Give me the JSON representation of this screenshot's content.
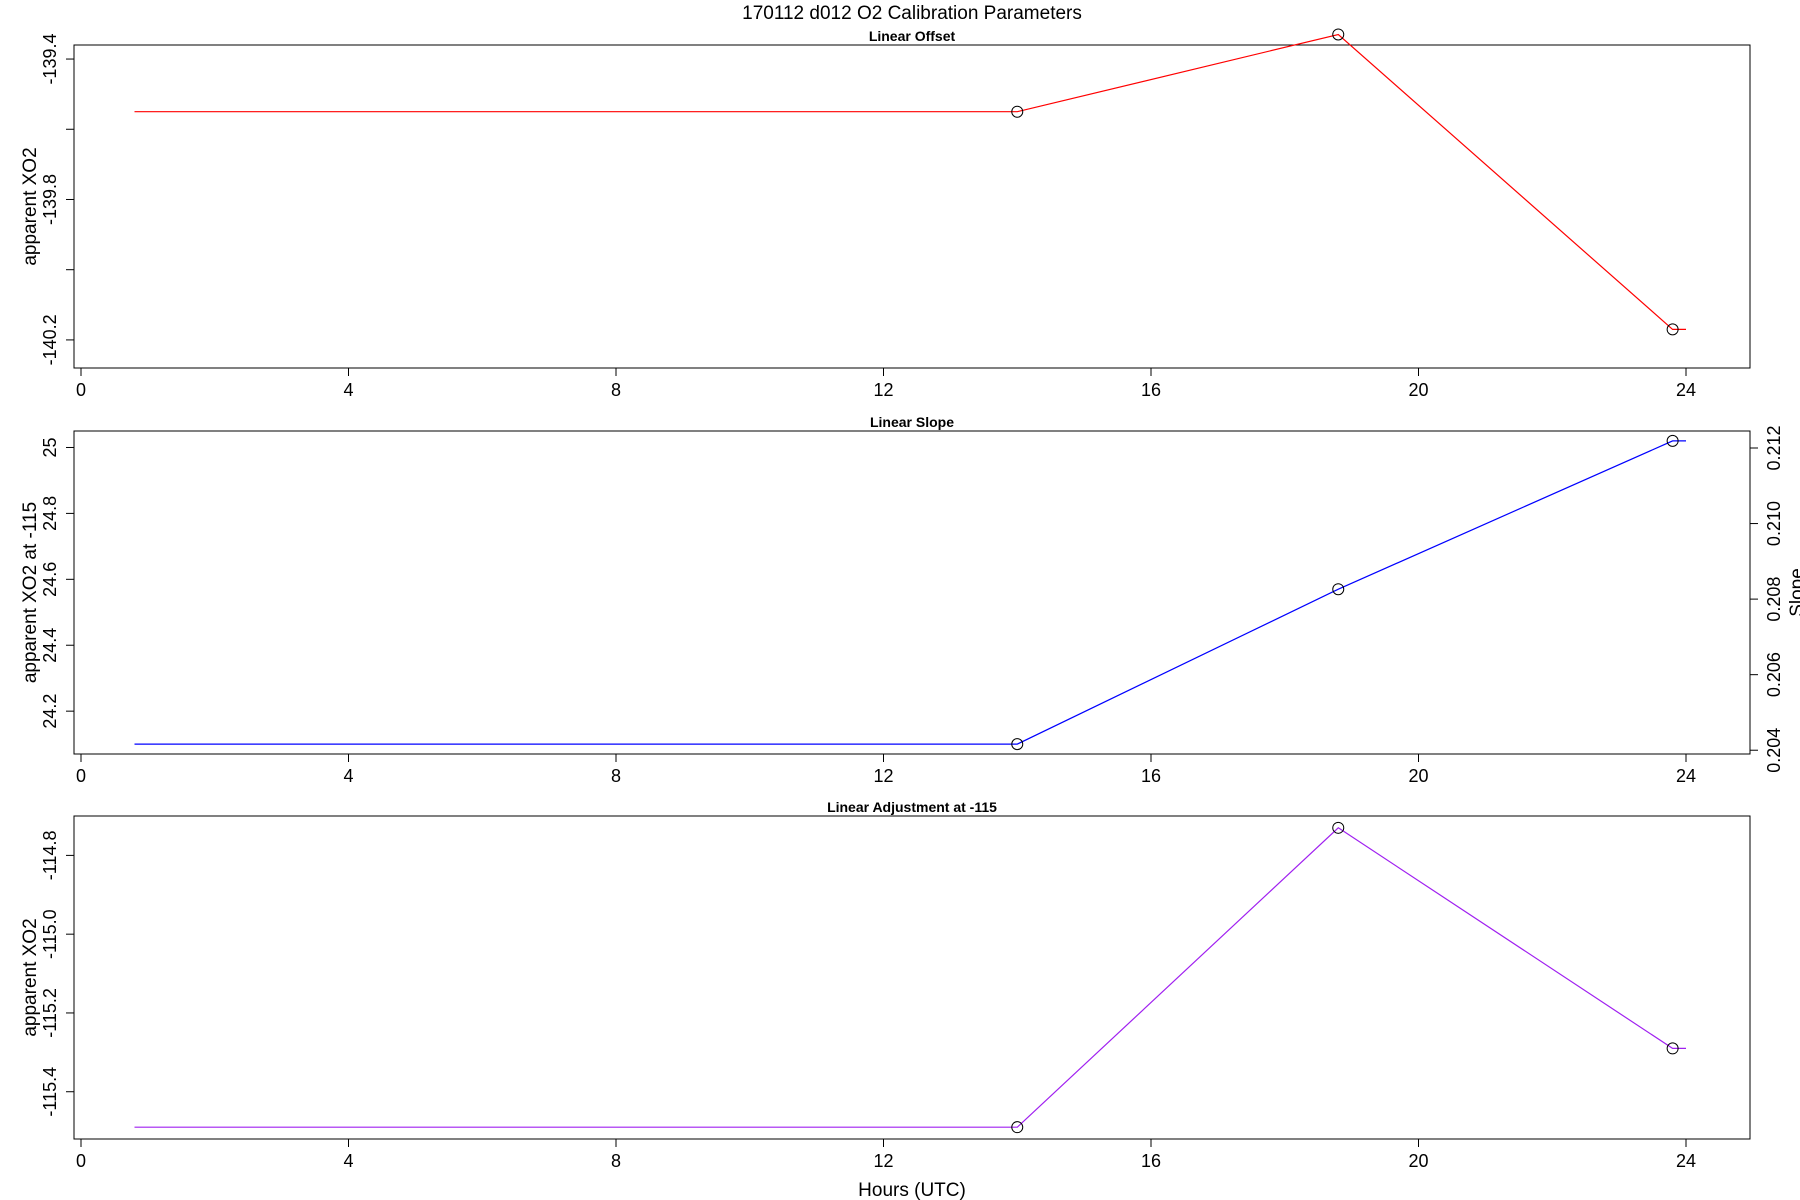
{
  "title": "170112   d012   O2 Calibration Parameters",
  "xlabel": "Hours (UTC)",
  "chart_data": [
    {
      "type": "line",
      "title": "Linear Offset",
      "ylabel": "apparent XO2",
      "xlim": [
        0,
        24
      ],
      "xticks": [
        0,
        4,
        8,
        12,
        16,
        20,
        24
      ],
      "ylim": [
        -140.28,
        -139.36
      ],
      "yticks": [
        -139.4,
        -139.8,
        -140.2
      ],
      "yminor": [
        -139.6,
        -140.0
      ],
      "color": "#ff0000",
      "grid": false,
      "x": [
        0.8,
        14.0,
        18.8,
        23.8,
        24.0
      ],
      "y": [
        -139.55,
        -139.55,
        -139.33,
        -140.17,
        -140.17
      ],
      "markers_x": [
        14.0,
        18.8,
        23.8
      ],
      "markers_y": [
        -139.55,
        -139.33,
        -140.17
      ]
    },
    {
      "type": "line",
      "title": "Linear Slope",
      "ylabel": "apparent XO2 at -115",
      "y2label": "Slope",
      "xlim": [
        0,
        24
      ],
      "xticks": [
        0,
        4,
        8,
        12,
        16,
        20,
        24
      ],
      "ylim": [
        24.07,
        25.05
      ],
      "yticks": [
        24.2,
        24.4,
        24.6,
        24.8,
        25.0
      ],
      "y2lim": [
        0.2039,
        0.21245
      ],
      "y2ticks": [
        0.204,
        0.206,
        0.208,
        0.21,
        0.212
      ],
      "y2tick_labels": [
        "0.204",
        "0.206",
        "0.208",
        "0.210",
        "0.212"
      ],
      "color": "#0000ff",
      "grid": false,
      "x": [
        0.8,
        14.0,
        18.8,
        23.8,
        24.0
      ],
      "y": [
        24.1,
        24.1,
        24.57,
        25.02,
        25.02
      ],
      "markers_x": [
        14.0,
        18.8,
        23.8
      ],
      "markers_y": [
        24.1,
        24.57,
        25.02
      ]
    },
    {
      "type": "line",
      "title": "Linear Adjustment at -115",
      "ylabel": "apparent XO2",
      "xlim": [
        0,
        24
      ],
      "xticks": [
        0,
        4,
        8,
        12,
        16,
        20,
        24
      ],
      "ylim": [
        -115.52,
        -114.7
      ],
      "yticks": [
        -114.8,
        -115.0,
        -115.2,
        -115.4
      ],
      "ytick_labels": [
        "-114.8",
        "-115.0",
        "-115.2",
        "-115.4"
      ],
      "color": "#a020f0",
      "grid": false,
      "x": [
        0.8,
        14.0,
        18.8,
        23.8,
        24.0
      ],
      "y": [
        -115.49,
        -115.49,
        -114.73,
        -115.29,
        -115.29
      ],
      "markers_x": [
        14.0,
        18.8,
        23.8
      ],
      "markers_y": [
        -115.49,
        -114.73,
        -115.29
      ]
    }
  ]
}
